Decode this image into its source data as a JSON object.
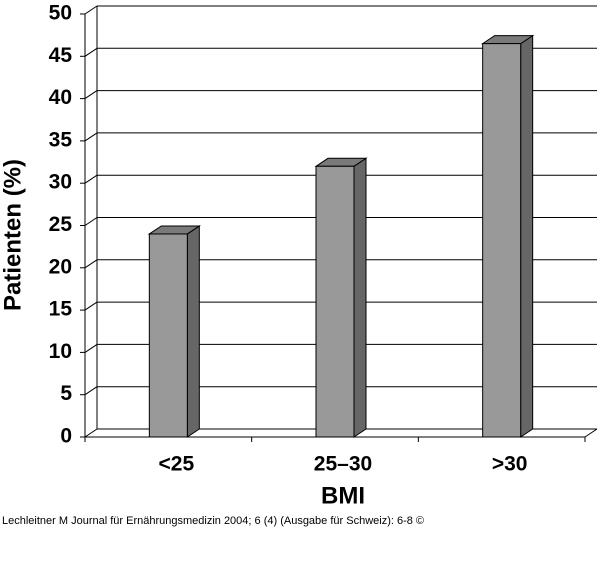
{
  "chart_data": {
    "type": "bar3d",
    "x_label": "BMI",
    "y_label": "Patienten (%)",
    "categories": [
      "<25",
      "25–30",
      ">30"
    ],
    "values": [
      24,
      32,
      46.5
    ],
    "color": "#999999",
    "ylim": [
      0,
      50
    ],
    "yticks": [
      0,
      5,
      10,
      15,
      20,
      25,
      30,
      35,
      40,
      45,
      50
    ],
    "grid": true,
    "caption": "Lechleitner M Journal für Ernährungsmedizin 2004; 6 (4) (Ausgabe für Schweiz): 6-8 ©"
  }
}
